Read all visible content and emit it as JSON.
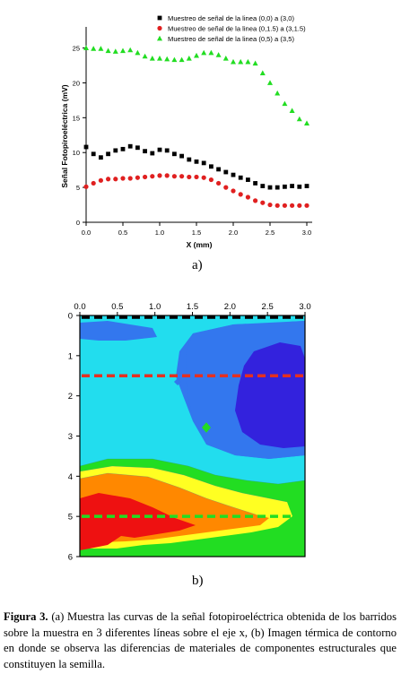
{
  "figure": {
    "sub_a": "a)",
    "sub_b": "b)",
    "caption_label": "Figura 3.",
    "caption_text": " (a) Muestra las curvas de la señal fotopiroeléctrica obtenida de los barridos  sobre la muestra en 3 diferentes líneas sobre el eje x, (b) Imagen térmica de contorno en donde se observa las diferencias de materiales de componentes estructurales que constituyen la semilla."
  },
  "chart_data": [
    {
      "type": "scatter",
      "xlabel": "X (mm)",
      "ylabel": "Señal Fotopiroeléctrica (mV)",
      "xlim": [
        0,
        3.0
      ],
      "ylim": [
        0,
        27
      ],
      "xticks": [
        "0.0",
        "0.5",
        "1.0",
        "1.5",
        "2.0",
        "2.5",
        "3.0"
      ],
      "yticks": [
        "0",
        "5",
        "10",
        "15",
        "20",
        "25"
      ],
      "legend_position": "top-right",
      "series": [
        {
          "name": "Muestreo de señal de la linea (0,0) a (3,0)",
          "marker": "square",
          "color": "#000000",
          "x": [
            0.0,
            0.1,
            0.2,
            0.3,
            0.4,
            0.5,
            0.6,
            0.7,
            0.8,
            0.9,
            1.0,
            1.1,
            1.2,
            1.3,
            1.4,
            1.5,
            1.6,
            1.7,
            1.8,
            1.9,
            2.0,
            2.1,
            2.2,
            2.3,
            2.4,
            2.5,
            2.6,
            2.7,
            2.8,
            2.9,
            3.0
          ],
          "y": [
            10.8,
            9.8,
            9.3,
            9.8,
            10.3,
            10.5,
            10.9,
            10.7,
            10.2,
            9.9,
            10.4,
            10.3,
            9.8,
            9.5,
            9.0,
            8.7,
            8.5,
            8.0,
            7.6,
            7.2,
            6.8,
            6.4,
            6.1,
            5.6,
            5.2,
            5.0,
            5.0,
            5.1,
            5.2,
            5.1,
            5.2
          ]
        },
        {
          "name": "Muestreo de señal de la linea (0,1.5) a (3,1.5)",
          "marker": "circle",
          "color": "#e02020",
          "x": [
            0.0,
            0.1,
            0.2,
            0.3,
            0.4,
            0.5,
            0.6,
            0.7,
            0.8,
            0.9,
            1.0,
            1.1,
            1.2,
            1.3,
            1.4,
            1.5,
            1.6,
            1.7,
            1.8,
            1.9,
            2.0,
            2.1,
            2.2,
            2.3,
            2.4,
            2.5,
            2.6,
            2.7,
            2.8,
            2.9,
            3.0
          ],
          "y": [
            5.1,
            5.6,
            6.0,
            6.2,
            6.2,
            6.3,
            6.3,
            6.4,
            6.5,
            6.6,
            6.7,
            6.7,
            6.6,
            6.6,
            6.5,
            6.5,
            6.4,
            6.1,
            5.6,
            5.0,
            4.5,
            4.0,
            3.6,
            3.1,
            2.8,
            2.5,
            2.4,
            2.4,
            2.4,
            2.4,
            2.4
          ]
        },
        {
          "name": "Muestreo de señal de la linea (0,5) a (3,5)",
          "marker": "triangle",
          "color": "#22dd22",
          "x": [
            0.0,
            0.1,
            0.2,
            0.3,
            0.4,
            0.5,
            0.6,
            0.7,
            0.8,
            0.9,
            1.0,
            1.1,
            1.2,
            1.3,
            1.4,
            1.5,
            1.6,
            1.7,
            1.8,
            1.9,
            2.0,
            2.1,
            2.2,
            2.3,
            2.4,
            2.5,
            2.6,
            2.7,
            2.8,
            2.9,
            3.0
          ],
          "y": [
            25.0,
            24.9,
            24.9,
            24.6,
            24.5,
            24.6,
            24.7,
            24.3,
            23.8,
            23.5,
            23.5,
            23.4,
            23.3,
            23.3,
            23.5,
            23.9,
            24.3,
            24.3,
            24.0,
            23.5,
            23.0,
            23.0,
            23.0,
            22.8,
            21.4,
            20.0,
            18.5,
            17.0,
            16.0,
            14.8,
            14.2
          ]
        }
      ]
    },
    {
      "type": "heatmap",
      "xlim": [
        0,
        3.0
      ],
      "ylim": [
        0,
        6
      ],
      "xticks": [
        "0.0",
        "0.5",
        "1.0",
        "1.5",
        "2.0",
        "2.5",
        "3.0"
      ],
      "yticks": [
        "0",
        "1",
        "2",
        "3",
        "4",
        "5",
        "6"
      ],
      "x_axis_position": "top",
      "y_axis_inverted": true,
      "scan_lines": [
        {
          "y": 0.0,
          "color": "#000000"
        },
        {
          "y": 1.5,
          "color": "#e53020"
        },
        {
          "y": 5.0,
          "color": "#22dd22"
        }
      ],
      "colors": {
        "low": "#3322dd",
        "mid_low": "#3377ee",
        "mid": "#22ddee",
        "mid_high": "#22dd22",
        "high_yellow": "#ffff22",
        "high_orange": "#ff8800",
        "high_red": "#ee1111"
      }
    }
  ]
}
